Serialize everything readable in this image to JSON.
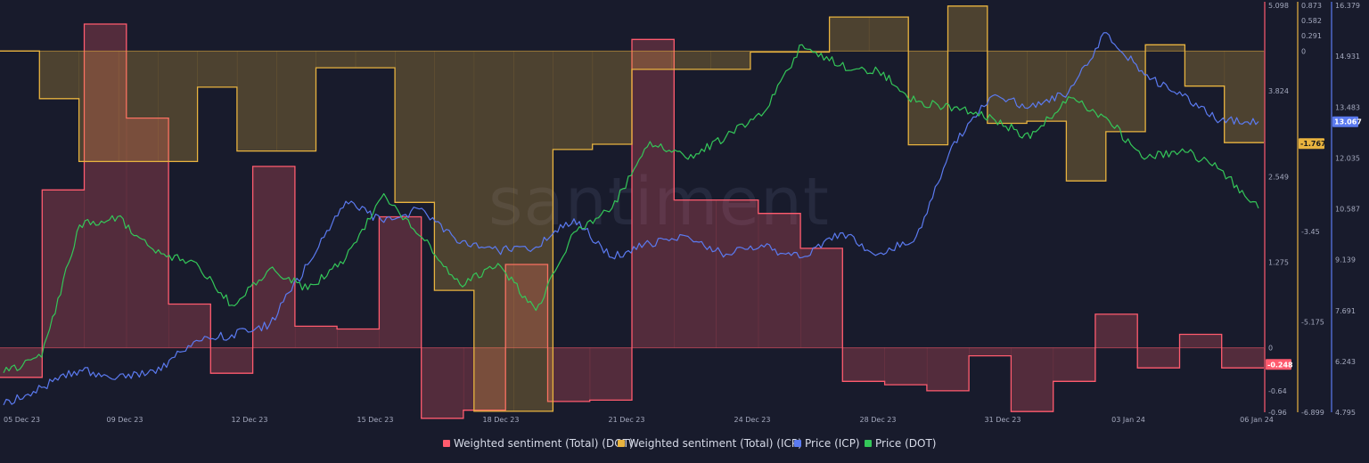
{
  "watermark": "santiment",
  "chart_data": {
    "type": "line",
    "x_labels": [
      "05 Dec 23",
      "09 Dec 23",
      "12 Dec 23",
      "15 Dec 23",
      "18 Dec 23",
      "21 Dec 23",
      "24 Dec 23",
      "28 Dec 23",
      "31 Dec 23",
      "03 Jan 24",
      "06 Jan 24"
    ],
    "grid": false,
    "legend_position": "bottom",
    "axes": [
      {
        "id": "dot_sent",
        "color": "#ff5b6e",
        "range": [
          -0.96,
          5.098
        ],
        "ticks": [
          "5.098",
          "3.824",
          "2.549",
          "1.275",
          "0",
          "-0.64",
          "-0.96"
        ]
      },
      {
        "id": "icp_sent",
        "color": "#e8b33f",
        "range": [
          -6.899,
          0.873
        ],
        "ticks": [
          "0.873",
          "0.582",
          "0.291",
          "0",
          "-1.767",
          "-3.45",
          "-5.175",
          "-6.899"
        ]
      },
      {
        "id": "icp_price",
        "color": "#5b7af0",
        "range": [
          4.795,
          16.379
        ],
        "ticks": [
          "16.379",
          "14.931",
          "13.483",
          "12.035",
          "10.587",
          "9.139",
          "7.691",
          "6.243",
          "4.795"
        ]
      }
    ],
    "series": [
      {
        "name": "Weighted sentiment (Total) (DOT)",
        "key": "dot",
        "color": "#ff5b6e",
        "axis": "dot_sent",
        "type": "step-area",
        "values": [
          -0.44,
          2.35,
          4.82,
          3.42,
          0.65,
          -0.38,
          2.7,
          0.32,
          0.28,
          1.95,
          -1.05,
          -0.93,
          1.24,
          -0.8,
          -0.78,
          4.59,
          2.2,
          2.2,
          2.0,
          1.48,
          -0.5,
          -0.55,
          -0.64,
          -0.12,
          -0.95,
          -0.5,
          0.5,
          -0.3,
          0.2,
          -0.3
        ],
        "current_value": "-0.248"
      },
      {
        "name": "Weighted sentiment (Total) (ICP)",
        "key": "icp",
        "color": "#e8b33f",
        "axis": "icp_sent",
        "type": "step-area",
        "values": [
          0.0,
          -0.91,
          -2.11,
          -2.11,
          -2.11,
          -0.69,
          -1.91,
          -1.91,
          -0.32,
          -0.32,
          -2.89,
          -4.57,
          -6.88,
          -6.88,
          -1.88,
          -1.78,
          -0.35,
          -0.35,
          -0.35,
          -0.02,
          -0.02,
          0.65,
          0.65,
          -1.79,
          0.86,
          -1.38,
          -1.34,
          -2.48,
          -1.54,
          0.12,
          -0.67,
          -1.75
        ],
        "current_value": "-1.767"
      },
      {
        "name": "Price (ICP)",
        "key": "icp_price",
        "color": "#5b7af0",
        "axis": "icp_price",
        "type": "line",
        "values": [
          5.0,
          5.5,
          6.0,
          5.8,
          5.9,
          6.8,
          7.0,
          7.3,
          9.0,
          10.8,
          10.2,
          10.6,
          9.6,
          9.4,
          9.5,
          10.3,
          9.2,
          9.6,
          9.8,
          9.3,
          9.5,
          9.2,
          9.9,
          9.3,
          9.8,
          12.5,
          13.8,
          13.5,
          13.9,
          15.6,
          14.4,
          13.8,
          13.1,
          13.07
        ],
        "current_value": "13.067"
      },
      {
        "name": "Price (DOT)",
        "key": "dot_price",
        "values": [
          5.9,
          6.05,
          7.32,
          7.4,
          7.05,
          6.97,
          6.55,
          6.9,
          6.7,
          7.0,
          7.62,
          7.2,
          6.75,
          6.95,
          6.5,
          7.25,
          7.48,
          8.12,
          7.95,
          8.17,
          8.4,
          9.05,
          8.85,
          8.8,
          8.5,
          8.45,
          8.35,
          8.15,
          8.55,
          8.35,
          7.95,
          8.05,
          7.85,
          7.48
        ],
        "color": "#34c759",
        "type": "line",
        "axis": "dot_price"
      }
    ]
  }
}
